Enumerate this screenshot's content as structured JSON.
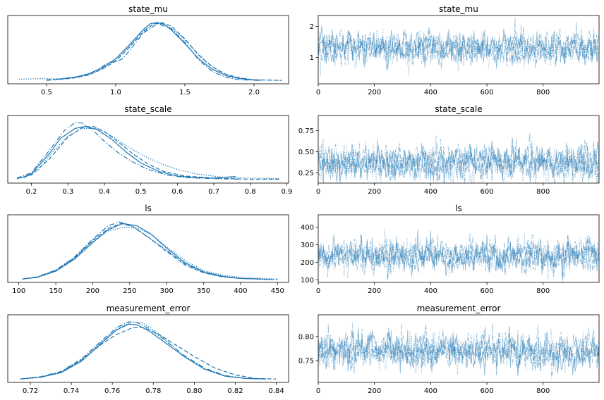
{
  "colors": {
    "line": "#1f77b4",
    "axis": "#000000"
  },
  "chart_data": [
    {
      "panel": "density",
      "type": "line",
      "title": "state_mu",
      "xlim": [
        0.22,
        2.25
      ],
      "xticks": [
        0.5,
        1.0,
        1.5,
        2.0
      ],
      "xtick_labels": [
        "0.5",
        "1.0",
        "1.5",
        "2.0"
      ],
      "series": [
        {
          "dash": "solid",
          "x": [
            0.55,
            0.7,
            0.8,
            0.9,
            1.0,
            1.1,
            1.2,
            1.25,
            1.3,
            1.35,
            1.4,
            1.5,
            1.6,
            1.7,
            1.8,
            1.9,
            2.0,
            2.05
          ],
          "y": [
            0.02,
            0.06,
            0.12,
            0.22,
            0.38,
            0.62,
            0.88,
            0.98,
            1.0,
            0.97,
            0.88,
            0.64,
            0.38,
            0.2,
            0.09,
            0.04,
            0.02,
            0.01
          ]
        },
        {
          "dash": "dashed",
          "x": [
            0.5,
            0.7,
            0.8,
            0.9,
            1.0,
            1.1,
            1.2,
            1.27,
            1.33,
            1.4,
            1.5,
            1.6,
            1.7,
            1.8,
            1.9,
            2.0,
            2.2
          ],
          "y": [
            0.01,
            0.05,
            0.1,
            0.2,
            0.34,
            0.58,
            0.84,
            0.97,
            1.0,
            0.94,
            0.72,
            0.44,
            0.24,
            0.11,
            0.05,
            0.02,
            0.01
          ]
        },
        {
          "dash": "dashdot",
          "x": [
            0.5,
            0.65,
            0.8,
            0.9,
            0.95,
            1.0,
            1.05,
            1.1,
            1.2,
            1.3,
            1.4,
            1.5,
            1.6,
            1.7,
            1.8,
            1.9,
            2.05
          ],
          "y": [
            0.02,
            0.04,
            0.1,
            0.24,
            0.32,
            0.33,
            0.38,
            0.52,
            0.82,
            0.98,
            0.9,
            0.66,
            0.36,
            0.16,
            0.06,
            0.02,
            0.01
          ]
        },
        {
          "dash": "dotted",
          "x": [
            0.3,
            0.45,
            0.6,
            0.8,
            0.9,
            1.0,
            1.1,
            1.2,
            1.28,
            1.35,
            1.45,
            1.55,
            1.65,
            1.75,
            1.85,
            2.0,
            2.2
          ],
          "y": [
            0.03,
            0.04,
            0.04,
            0.1,
            0.2,
            0.36,
            0.6,
            0.86,
            0.99,
            0.97,
            0.82,
            0.58,
            0.34,
            0.16,
            0.07,
            0.02,
            0.01
          ]
        }
      ]
    },
    {
      "panel": "trace",
      "type": "line",
      "title": "state_mu",
      "xlim": [
        0,
        999
      ],
      "ylim": [
        0.15,
        2.35
      ],
      "xticks": [
        0,
        200,
        400,
        600,
        800
      ],
      "xtick_labels": [
        "0",
        "200",
        "400",
        "600",
        "800"
      ],
      "yticks": [
        1,
        2
      ],
      "ytick_labels": [
        "1",
        "2"
      ],
      "draws": 1000,
      "center": 1.3,
      "spread": 0.25
    },
    {
      "panel": "density",
      "type": "line",
      "title": "state_scale",
      "xlim": [
        0.135,
        0.905
      ],
      "xticks": [
        0.2,
        0.3,
        0.4,
        0.5,
        0.6,
        0.7,
        0.8,
        0.9
      ],
      "xtick_labels": [
        "0.2",
        "0.3",
        "0.4",
        "0.5",
        "0.6",
        "0.7",
        "0.8",
        "0.9"
      ],
      "series": [
        {
          "dash": "solid",
          "x": [
            0.17,
            0.2,
            0.25,
            0.28,
            0.32,
            0.35,
            0.38,
            0.42,
            0.46,
            0.5,
            0.55,
            0.6,
            0.65,
            0.7,
            0.76
          ],
          "y": [
            0.04,
            0.12,
            0.5,
            0.78,
            0.96,
            1.0,
            0.94,
            0.76,
            0.52,
            0.32,
            0.16,
            0.08,
            0.05,
            0.04,
            0.07
          ]
        },
        {
          "dash": "dashed",
          "x": [
            0.16,
            0.2,
            0.25,
            0.3,
            0.34,
            0.37,
            0.4,
            0.44,
            0.48,
            0.52,
            0.56,
            0.62,
            0.7,
            0.8,
            0.88
          ],
          "y": [
            0.03,
            0.1,
            0.4,
            0.8,
            0.98,
            1.0,
            0.9,
            0.7,
            0.48,
            0.3,
            0.17,
            0.08,
            0.04,
            0.02,
            0.02
          ]
        },
        {
          "dash": "dashdot",
          "x": [
            0.16,
            0.2,
            0.25,
            0.29,
            0.32,
            0.34,
            0.37,
            0.4,
            0.44,
            0.48,
            0.52,
            0.57,
            0.62,
            0.7,
            0.78
          ],
          "y": [
            0.04,
            0.14,
            0.56,
            0.92,
            1.07,
            1.06,
            0.92,
            0.72,
            0.5,
            0.33,
            0.2,
            0.1,
            0.05,
            0.03,
            0.02
          ]
        },
        {
          "dash": "dotted",
          "x": [
            0.18,
            0.22,
            0.26,
            0.3,
            0.34,
            0.38,
            0.42,
            0.46,
            0.5,
            0.55,
            0.6,
            0.65,
            0.72,
            0.8,
            0.88
          ],
          "y": [
            0.04,
            0.2,
            0.54,
            0.82,
            0.96,
            0.96,
            0.82,
            0.64,
            0.48,
            0.32,
            0.2,
            0.12,
            0.06,
            0.04,
            0.03
          ]
        }
      ]
    },
    {
      "panel": "trace",
      "type": "line",
      "title": "state_scale",
      "xlim": [
        0,
        999
      ],
      "ylim": [
        0.13,
        0.93
      ],
      "xticks": [
        0,
        200,
        400,
        600,
        800
      ],
      "xtick_labels": [
        "0",
        "200",
        "400",
        "600",
        "800"
      ],
      "yticks": [
        0.25,
        0.5,
        0.75
      ],
      "ytick_labels": [
        "0.25",
        "0.50",
        "0.75"
      ],
      "draws": 1000,
      "center": 0.37,
      "spread": 0.1
    },
    {
      "panel": "density",
      "type": "line",
      "title": "ls",
      "xlim": [
        85,
        465
      ],
      "xticks": [
        100,
        150,
        200,
        250,
        300,
        350,
        400,
        450
      ],
      "xtick_labels": [
        "100",
        "150",
        "200",
        "250",
        "300",
        "350",
        "400",
        "450"
      ],
      "series": [
        {
          "dash": "solid",
          "x": [
            105,
            125,
            150,
            175,
            200,
            220,
            240,
            260,
            280,
            300,
            325,
            350,
            375,
            400,
            430
          ],
          "y": [
            0.01,
            0.04,
            0.15,
            0.36,
            0.66,
            0.88,
            1.0,
            0.96,
            0.8,
            0.56,
            0.3,
            0.14,
            0.06,
            0.02,
            0.01
          ]
        },
        {
          "dash": "dashed",
          "x": [
            105,
            125,
            150,
            175,
            200,
            222,
            238,
            255,
            275,
            300,
            325,
            350,
            375,
            400,
            450
          ],
          "y": [
            0.01,
            0.04,
            0.16,
            0.38,
            0.7,
            0.92,
            1.0,
            0.94,
            0.76,
            0.5,
            0.26,
            0.12,
            0.05,
            0.02,
            0.0
          ]
        },
        {
          "dash": "dashdot",
          "x": [
            105,
            125,
            150,
            175,
            200,
            220,
            235,
            250,
            270,
            300,
            325,
            350,
            375,
            400,
            440
          ],
          "y": [
            0.01,
            0.05,
            0.17,
            0.4,
            0.72,
            0.95,
            1.03,
            0.98,
            0.8,
            0.52,
            0.28,
            0.13,
            0.05,
            0.02,
            0.0
          ]
        },
        {
          "dash": "dotted",
          "x": [
            105,
            125,
            150,
            175,
            200,
            220,
            240,
            260,
            280,
            300,
            325,
            350,
            375,
            400,
            450
          ],
          "y": [
            0.01,
            0.05,
            0.17,
            0.39,
            0.68,
            0.86,
            0.93,
            0.92,
            0.8,
            0.58,
            0.34,
            0.16,
            0.08,
            0.04,
            0.01
          ]
        }
      ]
    },
    {
      "panel": "trace",
      "type": "line",
      "title": "ls",
      "xlim": [
        0,
        999
      ],
      "ylim": [
        85,
        470
      ],
      "xticks": [
        0,
        200,
        400,
        600,
        800
      ],
      "xtick_labels": [
        "0",
        "200",
        "400",
        "600",
        "800"
      ],
      "yticks": [
        100,
        200,
        300,
        400
      ],
      "ytick_labels": [
        "100",
        "200",
        "300",
        "400"
      ],
      "draws": 1000,
      "center": 240,
      "spread": 45
    },
    {
      "panel": "density",
      "type": "line",
      "title": "measurement_error",
      "xlim": [
        0.709,
        0.846
      ],
      "xticks": [
        0.72,
        0.74,
        0.76,
        0.78,
        0.8,
        0.82,
        0.84
      ],
      "xtick_labels": [
        "0.72",
        "0.74",
        "0.76",
        "0.78",
        "0.80",
        "0.82",
        "0.84"
      ],
      "series": [
        {
          "dash": "solid",
          "x": [
            0.715,
            0.725,
            0.735,
            0.745,
            0.755,
            0.762,
            0.768,
            0.772,
            0.778,
            0.785,
            0.795,
            0.805,
            0.815,
            0.825,
            0.835
          ],
          "y": [
            0.01,
            0.04,
            0.12,
            0.32,
            0.64,
            0.86,
            0.96,
            0.95,
            0.84,
            0.66,
            0.4,
            0.18,
            0.06,
            0.02,
            0.01
          ]
        },
        {
          "dash": "dashed",
          "x": [
            0.715,
            0.725,
            0.735,
            0.745,
            0.755,
            0.762,
            0.77,
            0.775,
            0.782,
            0.79,
            0.8,
            0.81,
            0.82,
            0.83,
            0.84
          ],
          "y": [
            0.01,
            0.04,
            0.13,
            0.34,
            0.62,
            0.78,
            0.9,
            0.9,
            0.8,
            0.62,
            0.4,
            0.2,
            0.08,
            0.02,
            0.01
          ]
        },
        {
          "dash": "dashdot",
          "x": [
            0.715,
            0.725,
            0.735,
            0.745,
            0.755,
            0.762,
            0.768,
            0.772,
            0.778,
            0.785,
            0.795,
            0.805,
            0.815,
            0.825,
            0.835
          ],
          "y": [
            0.01,
            0.05,
            0.14,
            0.36,
            0.68,
            0.9,
            1.0,
            0.99,
            0.88,
            0.7,
            0.42,
            0.2,
            0.07,
            0.02,
            0.01
          ]
        },
        {
          "dash": "dotted",
          "x": [
            0.715,
            0.725,
            0.735,
            0.745,
            0.755,
            0.763,
            0.77,
            0.775,
            0.78,
            0.787,
            0.795,
            0.805,
            0.815,
            0.825,
            0.835
          ],
          "y": [
            0.01,
            0.04,
            0.12,
            0.34,
            0.66,
            0.9,
            1.0,
            0.98,
            0.86,
            0.66,
            0.4,
            0.18,
            0.06,
            0.02,
            0.01
          ]
        }
      ]
    },
    {
      "panel": "trace",
      "type": "line",
      "title": "measurement_error",
      "xlim": [
        0,
        999
      ],
      "ylim": [
        0.705,
        0.845
      ],
      "xticks": [
        0,
        200,
        400,
        600,
        800
      ],
      "xtick_labels": [
        "0",
        "200",
        "400",
        "600",
        "800"
      ],
      "yticks": [
        0.75,
        0.8
      ],
      "ytick_labels": [
        "0.75",
        "0.80"
      ],
      "draws": 1000,
      "center": 0.77,
      "spread": 0.018
    }
  ]
}
